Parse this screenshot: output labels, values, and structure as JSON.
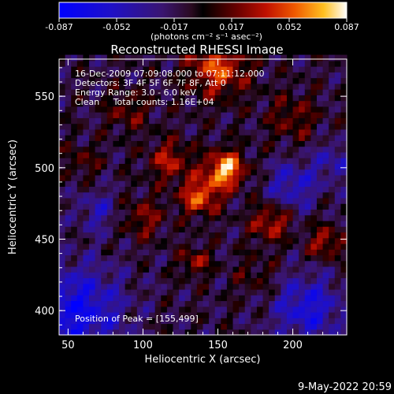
{
  "chart_data": {
    "type": "heatmap",
    "title": "Reconstructed RHESSI Image",
    "xlabel": "Heliocentric X (arcsec)",
    "ylabel": "Heliocentric Y (arcsec)",
    "xlim": [
      44,
      236
    ],
    "ylim": [
      383,
      576
    ],
    "x_ticks": [
      50,
      100,
      150,
      200
    ],
    "y_ticks": [
      400,
      450,
      500,
      550
    ],
    "colorbar": {
      "range": [
        -0.087,
        0.087
      ],
      "ticks": [
        "-0.087",
        "-0.052",
        "-0.017",
        "0.017",
        "0.052",
        "0.087"
      ],
      "units_label": "(photons cm⁻² s⁻¹ asec⁻²)"
    },
    "info_lines": [
      "16-Dec-2009 07:09:08.000 to 07:11:12.000",
      "Detectors: 3F 4F 5F 6F 7F 8F, Att 0",
      "Energy Range: 3.0 - 6.0 keV",
      "Clean     Total counts: 1.16E+04"
    ],
    "peak_label": "Position of Peak = [155,499]",
    "peak": [
      155,
      499
    ],
    "sources": [
      {
        "x": 155,
        "y": 499,
        "amp": 0.087,
        "w": 9
      },
      {
        "x": 138,
        "y": 480,
        "amp": 0.065,
        "w": 9
      },
      {
        "x": 118,
        "y": 505,
        "amp": 0.045,
        "w": 10
      },
      {
        "x": 185,
        "y": 462,
        "amp": 0.05,
        "w": 9
      },
      {
        "x": 222,
        "y": 448,
        "amp": 0.045,
        "w": 8
      },
      {
        "x": 150,
        "y": 570,
        "amp": 0.06,
        "w": 14
      },
      {
        "x": 135,
        "y": 435,
        "amp": 0.04,
        "w": 7
      },
      {
        "x": 100,
        "y": 465,
        "amp": 0.035,
        "w": 10
      },
      {
        "x": 90,
        "y": 540,
        "amp": 0.03,
        "w": 10
      },
      {
        "x": 200,
        "y": 535,
        "amp": 0.03,
        "w": 12
      },
      {
        "x": 175,
        "y": 425,
        "amp": 0.02,
        "w": 10
      },
      {
        "x": 60,
        "y": 505,
        "amp": 0.025,
        "w": 8
      }
    ],
    "negatives": [
      {
        "x": 55,
        "y": 400,
        "amp": -0.06,
        "w": 22
      },
      {
        "x": 210,
        "y": 402,
        "amp": -0.05,
        "w": 16
      },
      {
        "x": 200,
        "y": 488,
        "amp": -0.04,
        "w": 12
      },
      {
        "x": 70,
        "y": 470,
        "amp": -0.03,
        "w": 10
      },
      {
        "x": 228,
        "y": 505,
        "amp": -0.03,
        "w": 10
      }
    ],
    "grid": false,
    "legend": "none"
  },
  "footer": {
    "date": "9-May-2022 20:59"
  }
}
